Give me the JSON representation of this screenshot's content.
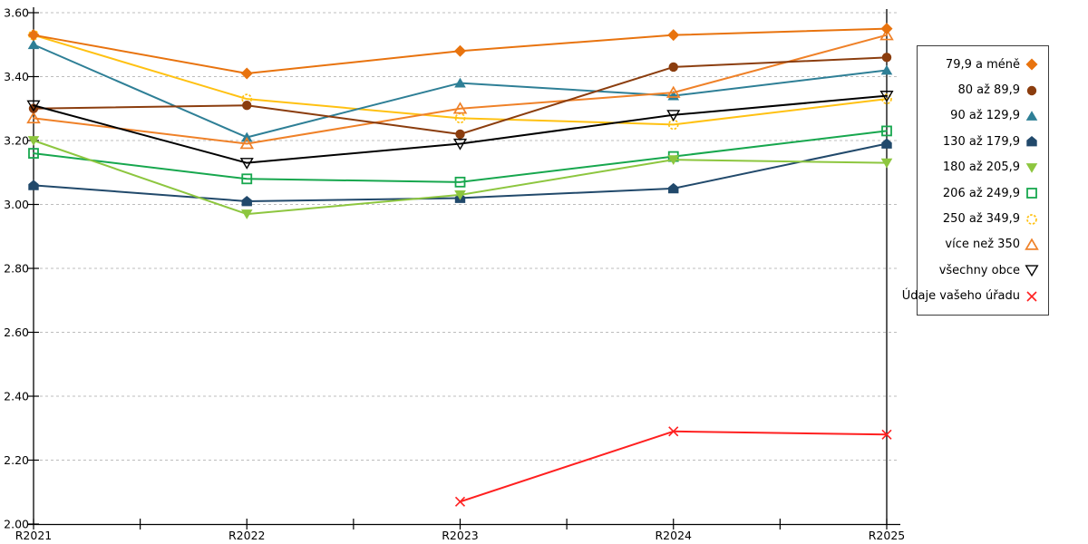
{
  "chart_data": {
    "type": "line",
    "title": "",
    "xlabel": "",
    "ylabel": "",
    "x": [
      "R2021",
      "R2022",
      "R2023",
      "R2024",
      "R2025"
    ],
    "ylim": [
      2.0,
      3.6
    ],
    "ytick_step": 0.2,
    "yticks": [
      "3.60",
      "3.40",
      "3.20",
      "3.00",
      "2.80",
      "2.60",
      "2.40",
      "2.20",
      "2.00"
    ],
    "grid": "horizontal-dashed",
    "grid_color": "#BDBDBD",
    "axis_color": "#000000",
    "legend_position": "right",
    "series": [
      {
        "name": "79,9 a méně",
        "marker": "diamond",
        "filled": true,
        "color": "#E8730E",
        "values": [
          3.53,
          3.41,
          3.48,
          3.53,
          3.55
        ]
      },
      {
        "name": "80 až 89,9",
        "marker": "circle",
        "filled": true,
        "color": "#8B3D0E",
        "values": [
          3.3,
          3.31,
          3.22,
          3.43,
          3.46
        ]
      },
      {
        "name": "90 až 129,9",
        "marker": "triangle-up",
        "filled": true,
        "color": "#2E7F96",
        "values": [
          3.5,
          3.21,
          3.38,
          3.34,
          3.42
        ]
      },
      {
        "name": "130 až 179,9",
        "marker": "pentagon",
        "filled": true,
        "color": "#21496B",
        "values": [
          3.06,
          3.01,
          3.02,
          3.05,
          3.19
        ]
      },
      {
        "name": "180 až 205,9",
        "marker": "triangle-down",
        "filled": true,
        "color": "#8DC63F",
        "values": [
          3.2,
          2.97,
          3.03,
          3.14,
          3.13
        ]
      },
      {
        "name": "206 až 249,9",
        "marker": "square",
        "filled": false,
        "color": "#17A74E",
        "values": [
          3.16,
          3.08,
          3.07,
          3.15,
          3.23
        ]
      },
      {
        "name": "250 až 349,9",
        "marker": "circle",
        "filled": false,
        "dashed_marker": true,
        "color": "#FFC112",
        "values": [
          3.53,
          3.33,
          3.27,
          3.25,
          3.33
        ]
      },
      {
        "name": "více než 350",
        "marker": "triangle-up",
        "filled": false,
        "color": "#EF8128",
        "values": [
          3.27,
          3.19,
          3.3,
          3.35,
          3.53
        ]
      },
      {
        "name": "všechny obce",
        "marker": "triangle-down",
        "filled": false,
        "color": "#000000",
        "values": [
          3.31,
          3.13,
          3.19,
          3.28,
          3.34
        ]
      },
      {
        "name": "Údaje vašeho úřadu",
        "marker": "x",
        "filled": false,
        "color": "#FF2020",
        "values": [
          null,
          null,
          2.07,
          2.29,
          2.28
        ]
      }
    ],
    "draw_order": [
      6,
      5,
      3,
      4,
      2,
      7,
      1,
      8,
      0,
      9
    ]
  }
}
